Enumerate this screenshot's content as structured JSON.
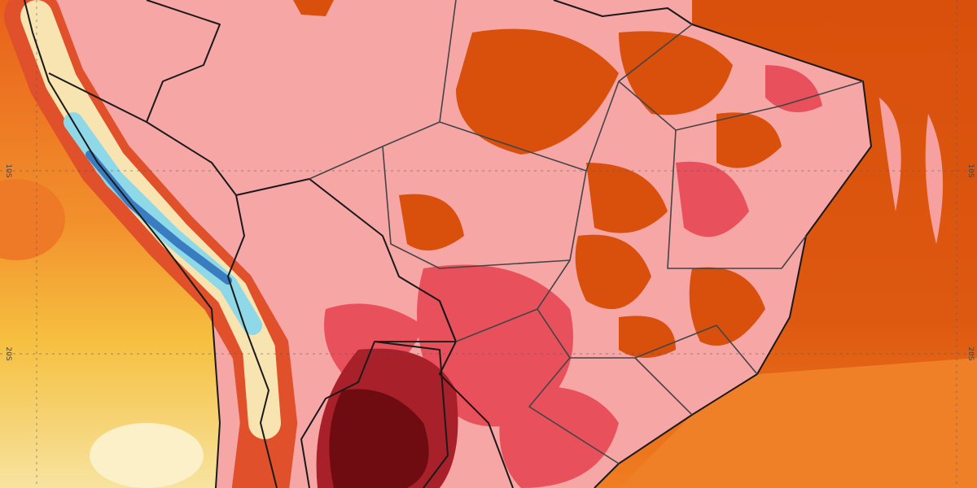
{
  "latitude_labels": {
    "left": [
      "10S",
      "20S"
    ],
    "right": [
      "10S",
      "20S"
    ]
  }
}
